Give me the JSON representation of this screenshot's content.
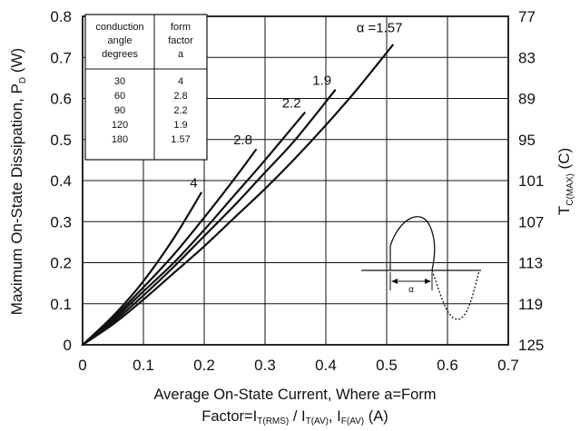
{
  "chart_data": {
    "type": "line",
    "ylabel_left": {
      "main": "Maximum On-State Dissipation, P",
      "sub": "D",
      "unit": " (W)"
    },
    "ylabel_right": {
      "main": "T",
      "sub": "C(MAX)",
      "unit": " (C)"
    },
    "xlabel_line1": "Average On-State Current, Where a=Form",
    "xlabel_line2": {
      "a": "Factor=I",
      "a_sub": "T(RMS)",
      "b": " / I",
      "b_sub": "T(AV)",
      "c": ", I",
      "c_sub": "F(AV)",
      "d": " (A)"
    },
    "xlim": [
      0,
      0.7
    ],
    "ylim": [
      0,
      0.8
    ],
    "x_ticks": [
      "0",
      "0.1",
      "0.2",
      "0.3",
      "0.4",
      "0.5",
      "0.6",
      "0.7"
    ],
    "y_ticks": [
      "0",
      "0.1",
      "0.2",
      "0.3",
      "0.4",
      "0.5",
      "0.6",
      "0.7",
      "0.8"
    ],
    "y2_ticks": [
      "125",
      "119",
      "113",
      "107",
      "101",
      "95",
      "89",
      "83",
      "77"
    ],
    "grid": true,
    "series": [
      {
        "name": "4",
        "label": "4",
        "x": [
          0,
          0.05,
          0.1,
          0.15,
          0.195
        ],
        "y": [
          0,
          0.07,
          0.155,
          0.26,
          0.37
        ]
      },
      {
        "name": "2.8",
        "label": "2.8",
        "x": [
          0,
          0.05,
          0.1,
          0.15,
          0.2,
          0.25,
          0.285
        ],
        "y": [
          0,
          0.065,
          0.14,
          0.22,
          0.31,
          0.405,
          0.475
        ]
      },
      {
        "name": "2.2",
        "label": "2.2",
        "x": [
          0,
          0.05,
          0.1,
          0.15,
          0.2,
          0.25,
          0.3,
          0.365
        ],
        "y": [
          0,
          0.06,
          0.13,
          0.2,
          0.28,
          0.365,
          0.45,
          0.565
        ]
      },
      {
        "name": "1.9",
        "label": "1.9",
        "x": [
          0,
          0.05,
          0.1,
          0.15,
          0.2,
          0.25,
          0.3,
          0.35,
          0.415
        ],
        "y": [
          0,
          0.055,
          0.12,
          0.19,
          0.265,
          0.34,
          0.42,
          0.5,
          0.62
        ]
      },
      {
        "name": "1.57",
        "label": "α =1.57",
        "x": [
          0,
          0.05,
          0.1,
          0.15,
          0.2,
          0.25,
          0.3,
          0.35,
          0.4,
          0.45,
          0.51
        ],
        "y": [
          0,
          0.05,
          0.11,
          0.175,
          0.24,
          0.31,
          0.38,
          0.455,
          0.535,
          0.62,
          0.73
        ]
      }
    ],
    "table": {
      "headers": [
        [
          "conduction",
          "angle",
          "degrees"
        ],
        [
          "form",
          "factor",
          "a"
        ]
      ],
      "rows": [
        [
          "30",
          "4"
        ],
        [
          "60",
          "2.8"
        ],
        [
          "90",
          "2.2"
        ],
        [
          "120",
          "1.9"
        ],
        [
          "180",
          "1.57"
        ]
      ]
    },
    "inset_label": "α"
  }
}
